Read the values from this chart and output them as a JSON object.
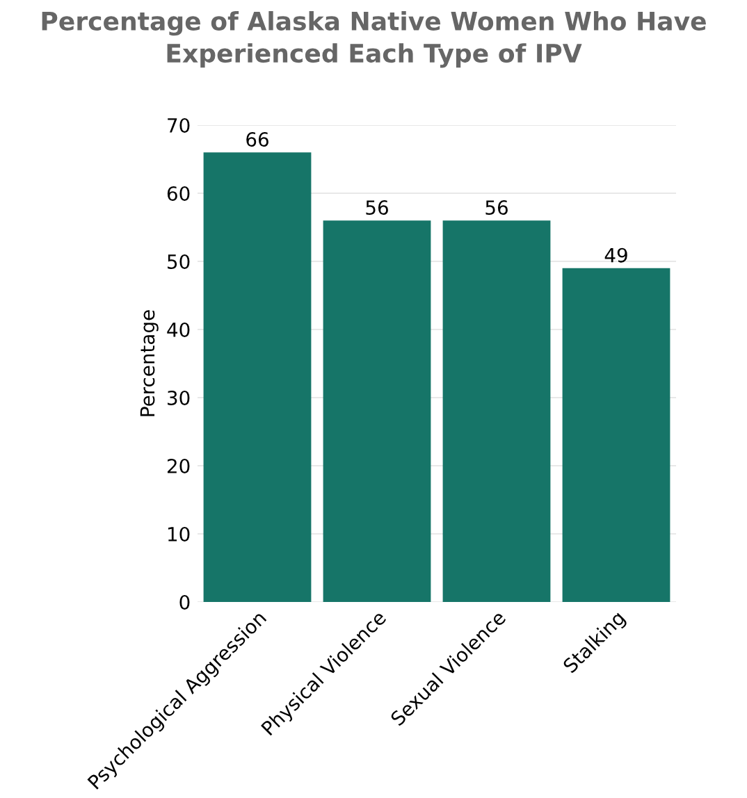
{
  "chart_data": {
    "type": "bar",
    "title": "Percentage of Alaska Native Women Who Have\nExperienced Each Type of IPV",
    "ylabel": "Percentage",
    "categories": [
      "Psychological Aggression",
      "Physical Violence",
      "Sexual Violence",
      "Stalking"
    ],
    "values": [
      66,
      56,
      56,
      49
    ],
    "color": "#167568",
    "data_labels": true,
    "ylim": [
      0,
      70
    ],
    "yticks": [
      0,
      10,
      20,
      30,
      40,
      50,
      60,
      70
    ],
    "grid": "y"
  }
}
